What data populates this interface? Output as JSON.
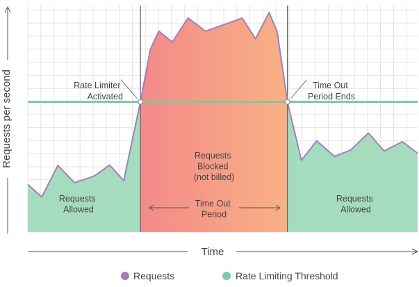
{
  "chart_data": {
    "type": "area",
    "title": "",
    "xlabel": "Time",
    "ylabel": "Requests per second",
    "grid": true,
    "legend_placement": "bottom-center",
    "threshold": 0.575,
    "activated_at": 0.289,
    "ends_at": 0.666,
    "x": [
      0,
      0.036,
      0.077,
      0.12,
      0.171,
      0.21,
      0.246,
      0.289,
      0.314,
      0.336,
      0.371,
      0.411,
      0.456,
      0.507,
      0.55,
      0.584,
      0.619,
      0.64,
      0.666,
      0.702,
      0.741,
      0.787,
      0.828,
      0.874,
      0.914,
      0.961,
      1.0
    ],
    "y": [
      0.21,
      0.155,
      0.294,
      0.218,
      0.248,
      0.296,
      0.227,
      0.575,
      0.805,
      0.887,
      0.839,
      0.945,
      0.887,
      0.918,
      0.945,
      0.853,
      0.969,
      0.884,
      0.575,
      0.317,
      0.403,
      0.334,
      0.362,
      0.437,
      0.358,
      0.399,
      0.348
    ],
    "series": [
      {
        "name": "Requests",
        "color": "#9f7fc0"
      },
      {
        "name": "Rate Limiting Threshold",
        "color": "#7dcaa0"
      }
    ],
    "annotations": {
      "activated": [
        "Rate Limiter",
        "Activated"
      ],
      "ends": [
        "Time Out",
        "Period Ends"
      ],
      "blocked": [
        "Requests",
        "Blocked",
        "(not billed)"
      ],
      "period": [
        "Time Out",
        "Period"
      ],
      "allowed_left": [
        "Requests",
        "Allowed"
      ],
      "allowed_right": [
        "Requests",
        "Allowed"
      ]
    },
    "colors": {
      "allowed_fill": "#a6dcbe",
      "blocked_start": "#f4898a",
      "blocked_end": "#f8b184",
      "grid": "#e4e4e4",
      "divider": "#666666",
      "axis": "#555555"
    }
  }
}
